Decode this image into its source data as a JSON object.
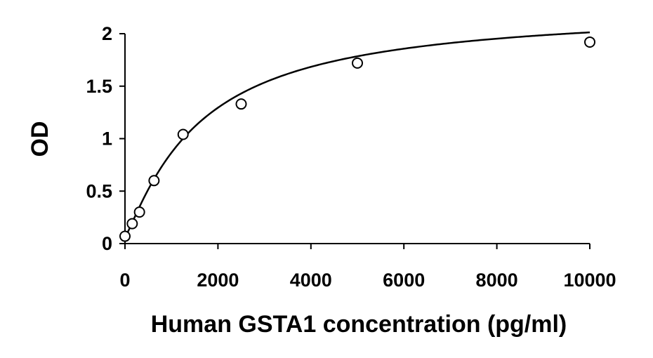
{
  "chart_data": {
    "type": "scatter",
    "title": "",
    "xlabel": "Human GSTA1 concentration (pg/ml)",
    "ylabel": "OD",
    "xlim": [
      0,
      10000
    ],
    "ylim": [
      0,
      2
    ],
    "x_ticks": [
      0,
      2000,
      4000,
      6000,
      8000,
      10000
    ],
    "y_ticks": [
      0,
      0.5,
      1,
      1.5,
      2
    ],
    "x_tick_labels": [
      "0",
      "2000",
      "4000",
      "6000",
      "8000",
      "10000"
    ],
    "y_tick_labels": [
      "0",
      "0.5",
      "1",
      "1.5",
      "2"
    ],
    "grid": false,
    "legend": "none",
    "series": [
      {
        "marker": "open-circle",
        "x": [
          0,
          156,
          312,
          625,
          1250,
          2500,
          5000,
          10000
        ],
        "y": [
          0.07,
          0.19,
          0.3,
          0.6,
          1.04,
          1.33,
          1.72,
          1.92
        ]
      }
    ],
    "fit_curve": {
      "model": "4PL",
      "bottom": 0.06,
      "top": 2.25,
      "ec50": 1600,
      "hill": 1.15
    },
    "colors": {
      "axis": "#000000",
      "marker": "#000000",
      "curve": "#000000"
    }
  }
}
